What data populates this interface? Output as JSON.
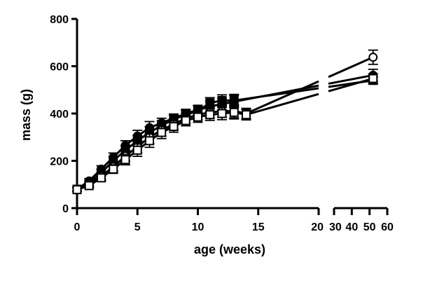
{
  "chart_data": {
    "type": "line",
    "title": "",
    "xlabel": "age (weeks)",
    "ylabel": "mass (g)",
    "ylim": [
      0,
      800
    ],
    "y_ticks": [
      0,
      200,
      400,
      600,
      800
    ],
    "x_segments": [
      {
        "range": [
          0,
          20
        ],
        "ticks": [
          0,
          5,
          10,
          15,
          20
        ]
      },
      {
        "range": [
          30,
          60
        ],
        "ticks": [
          30,
          40,
          50,
          60
        ]
      }
    ],
    "grid": false,
    "legend": "none",
    "series": [
      {
        "marker": "filled-circle",
        "points": [
          {
            "x": 0,
            "y": 80,
            "err": 8
          },
          {
            "x": 1,
            "y": 115,
            "err": 10
          },
          {
            "x": 2,
            "y": 165,
            "err": 14
          },
          {
            "x": 3,
            "y": 215,
            "err": 18
          },
          {
            "x": 4,
            "y": 265,
            "err": 20
          },
          {
            "x": 5,
            "y": 305,
            "err": 24
          },
          {
            "x": 6,
            "y": 340,
            "err": 26
          },
          {
            "x": 7,
            "y": 360,
            "err": 20
          },
          {
            "x": 8,
            "y": 380,
            "err": 18
          },
          {
            "x": 9,
            "y": 400,
            "err": 18
          },
          {
            "x": 10,
            "y": 415,
            "err": 20
          },
          {
            "x": 11,
            "y": 430,
            "err": 22
          },
          {
            "x": 12,
            "y": 440,
            "err": 24
          },
          {
            "x": 13,
            "y": 450,
            "err": 26
          },
          {
            "x": 52,
            "y": 562,
            "err": 25
          }
        ]
      },
      {
        "marker": "filled-square",
        "points": [
          {
            "x": 0,
            "y": 80,
            "err": 8
          },
          {
            "x": 1,
            "y": 105,
            "err": 10
          },
          {
            "x": 2,
            "y": 150,
            "err": 14
          },
          {
            "x": 3,
            "y": 200,
            "err": 18
          },
          {
            "x": 4,
            "y": 245,
            "err": 20
          },
          {
            "x": 5,
            "y": 285,
            "err": 22
          },
          {
            "x": 6,
            "y": 320,
            "err": 24
          },
          {
            "x": 7,
            "y": 350,
            "err": 20
          },
          {
            "x": 8,
            "y": 375,
            "err": 18
          },
          {
            "x": 9,
            "y": 395,
            "err": 18
          },
          {
            "x": 10,
            "y": 410,
            "err": 20
          },
          {
            "x": 11,
            "y": 445,
            "err": 22
          },
          {
            "x": 12,
            "y": 455,
            "err": 24
          },
          {
            "x": 13,
            "y": 455,
            "err": 26
          },
          {
            "x": 52,
            "y": 540,
            "err": 15
          }
        ]
      },
      {
        "marker": "open-circle",
        "points": [
          {
            "x": 0,
            "y": 78,
            "err": 8
          },
          {
            "x": 1,
            "y": 98,
            "err": 10
          },
          {
            "x": 2,
            "y": 135,
            "err": 14
          },
          {
            "x": 3,
            "y": 175,
            "err": 18
          },
          {
            "x": 4,
            "y": 220,
            "err": 22
          },
          {
            "x": 5,
            "y": 260,
            "err": 26
          },
          {
            "x": 6,
            "y": 300,
            "err": 28
          },
          {
            "x": 7,
            "y": 330,
            "err": 26
          },
          {
            "x": 8,
            "y": 355,
            "err": 24
          },
          {
            "x": 9,
            "y": 380,
            "err": 22
          },
          {
            "x": 10,
            "y": 395,
            "err": 22
          },
          {
            "x": 11,
            "y": 405,
            "err": 24
          },
          {
            "x": 12,
            "y": 410,
            "err": 26
          },
          {
            "x": 13,
            "y": 410,
            "err": 28
          },
          {
            "x": 14,
            "y": 400,
            "err": 22
          },
          {
            "x": 52,
            "y": 638,
            "err": 30
          }
        ]
      },
      {
        "marker": "open-square",
        "points": [
          {
            "x": 0,
            "y": 78,
            "err": 8
          },
          {
            "x": 1,
            "y": 95,
            "err": 10
          },
          {
            "x": 2,
            "y": 128,
            "err": 14
          },
          {
            "x": 3,
            "y": 165,
            "err": 18
          },
          {
            "x": 4,
            "y": 205,
            "err": 22
          },
          {
            "x": 5,
            "y": 245,
            "err": 26
          },
          {
            "x": 6,
            "y": 285,
            "err": 28
          },
          {
            "x": 7,
            "y": 320,
            "err": 26
          },
          {
            "x": 8,
            "y": 345,
            "err": 24
          },
          {
            "x": 9,
            "y": 370,
            "err": 22
          },
          {
            "x": 10,
            "y": 385,
            "err": 22
          },
          {
            "x": 11,
            "y": 395,
            "err": 24
          },
          {
            "x": 12,
            "y": 400,
            "err": 26
          },
          {
            "x": 13,
            "y": 405,
            "err": 28
          },
          {
            "x": 14,
            "y": 395,
            "err": 22
          },
          {
            "x": 52,
            "y": 548,
            "err": 20
          }
        ]
      }
    ]
  }
}
